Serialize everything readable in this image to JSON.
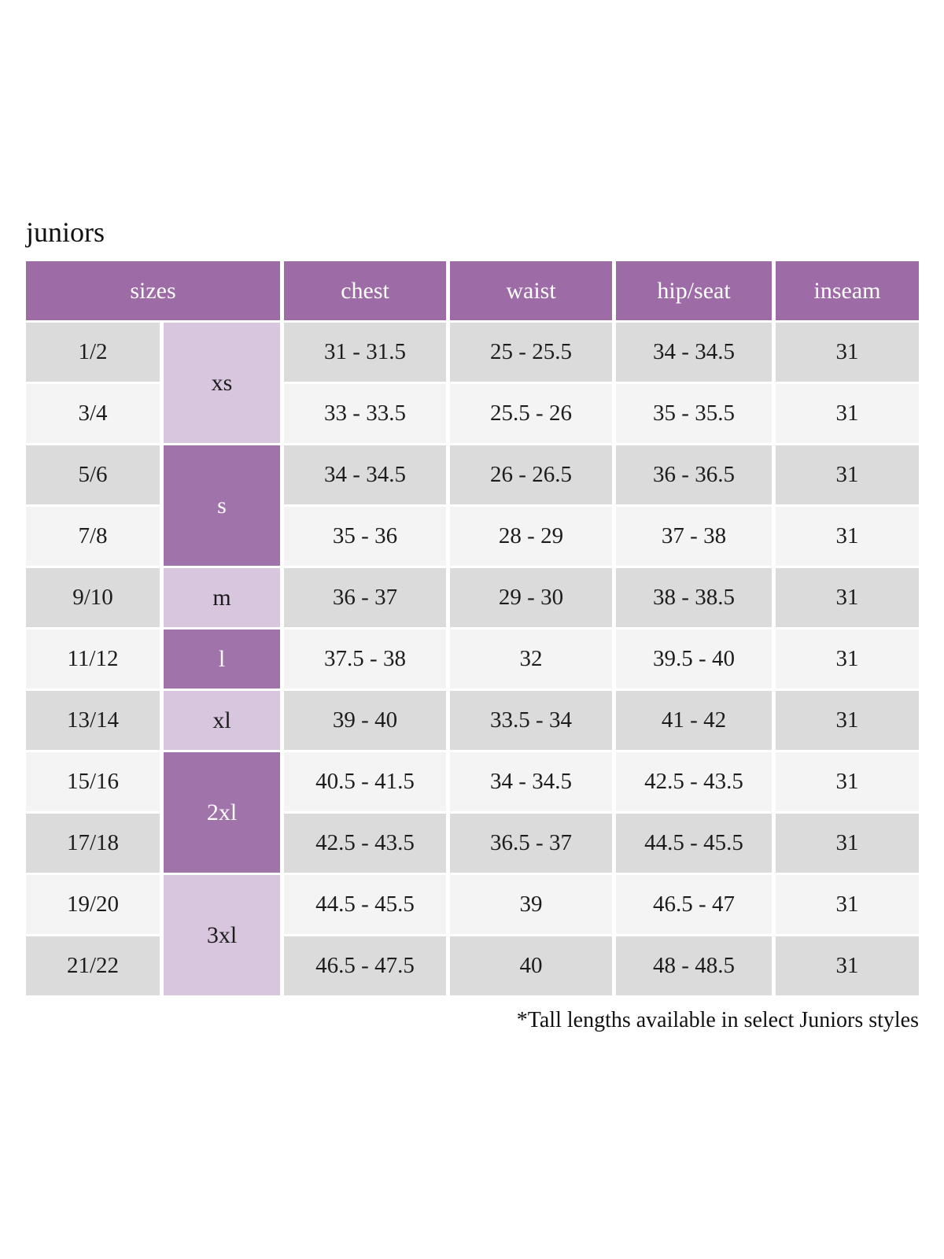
{
  "page": {
    "title": "juniors",
    "footnote": "*Tall lengths available in select Juniors styles"
  },
  "colors": {
    "header_bg": "#9d6ba5",
    "header_text": "#ffffff",
    "size_dark_bg": "#a173ab",
    "size_dark_text": "#ffffff",
    "size_light_bg": "#d8c6de",
    "size_light_text": "#1c1c1c",
    "row_dark_bg": "#dbdbdb",
    "row_light_bg": "#f4f4f4",
    "text": "#1c1c1c"
  },
  "table": {
    "headers": [
      "sizes",
      "chest",
      "waist",
      "hip/seat",
      "inseam"
    ],
    "size_groups": [
      {
        "label": "xs",
        "span": 2,
        "variant": "light"
      },
      {
        "label": "s",
        "span": 2,
        "variant": "dark"
      },
      {
        "label": "m",
        "span": 1,
        "variant": "light"
      },
      {
        "label": "l",
        "span": 1,
        "variant": "dark"
      },
      {
        "label": "xl",
        "span": 1,
        "variant": "light"
      },
      {
        "label": "2xl",
        "span": 2,
        "variant": "dark"
      },
      {
        "label": "3xl",
        "span": 2,
        "variant": "light"
      }
    ],
    "rows": [
      {
        "size": "1/2",
        "chest": "31 - 31.5",
        "waist": "25 - 25.5",
        "hip_seat": "34 - 34.5",
        "inseam": "31",
        "shade": "dark"
      },
      {
        "size": "3/4",
        "chest": "33 - 33.5",
        "waist": "25.5 - 26",
        "hip_seat": "35 - 35.5",
        "inseam": "31",
        "shade": "light"
      },
      {
        "size": "5/6",
        "chest": "34 - 34.5",
        "waist": "26 - 26.5",
        "hip_seat": "36 - 36.5",
        "inseam": "31",
        "shade": "dark"
      },
      {
        "size": "7/8",
        "chest": "35 - 36",
        "waist": "28 - 29",
        "hip_seat": "37 - 38",
        "inseam": "31",
        "shade": "light"
      },
      {
        "size": "9/10",
        "chest": "36 - 37",
        "waist": "29 - 30",
        "hip_seat": "38 - 38.5",
        "inseam": "31",
        "shade": "dark"
      },
      {
        "size": "11/12",
        "chest": "37.5 - 38",
        "waist": "32",
        "hip_seat": "39.5 - 40",
        "inseam": "31",
        "shade": "light"
      },
      {
        "size": "13/14",
        "chest": "39 - 40",
        "waist": "33.5 - 34",
        "hip_seat": "41 - 42",
        "inseam": "31",
        "shade": "dark"
      },
      {
        "size": "15/16",
        "chest": "40.5 - 41.5",
        "waist": "34 - 34.5",
        "hip_seat": "42.5 - 43.5",
        "inseam": "31",
        "shade": "light"
      },
      {
        "size": "17/18",
        "chest": "42.5 - 43.5",
        "waist": "36.5 - 37",
        "hip_seat": "44.5 - 45.5",
        "inseam": "31",
        "shade": "dark"
      },
      {
        "size": "19/20",
        "chest": "44.5 - 45.5",
        "waist": "39",
        "hip_seat": "46.5 - 47",
        "inseam": "31",
        "shade": "light"
      },
      {
        "size": "21/22",
        "chest": "46.5 - 47.5",
        "waist": "40",
        "hip_seat": "48 - 48.5",
        "inseam": "31",
        "shade": "dark"
      }
    ]
  }
}
